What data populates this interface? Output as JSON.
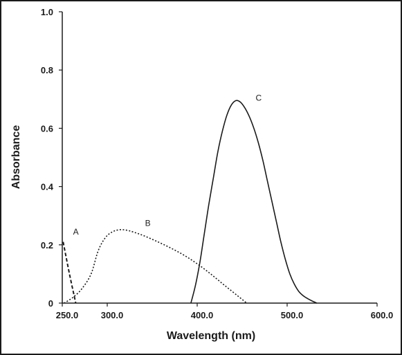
{
  "chart_data": {
    "type": "line",
    "xlabel": "Wavelength (nm)",
    "ylabel": "Absorbance",
    "xlim": [
      250,
      600
    ],
    "ylim": [
      0,
      1.0
    ],
    "x_tick_labels": [
      "250.0",
      "300.0",
      "400.0",
      "500.0",
      "600.0"
    ],
    "x_tick_values": [
      250,
      300,
      400,
      500,
      600
    ],
    "y_tick_labels": [
      "0",
      "0.2",
      "0.4",
      "0.6",
      "0.8",
      "1.0"
    ],
    "y_tick_values": [
      0,
      0.2,
      0.4,
      0.6,
      0.8,
      1.0
    ],
    "grid": false,
    "legend": "none",
    "series": [
      {
        "name": "A",
        "line_style": "dashed",
        "color": "#1a1a1a",
        "x": [
          251,
          258,
          265
        ],
        "y": [
          0.21,
          0.1,
          0.0
        ]
      },
      {
        "name": "B",
        "line_style": "dotted",
        "color": "#1a1a1a",
        "x": [
          252,
          262,
          272,
          282,
          290,
          298,
          306,
          314,
          322,
          330,
          340,
          355,
          370,
          385,
          400,
          415,
          430,
          445,
          455
        ],
        "y": [
          0.0,
          0.02,
          0.05,
          0.1,
          0.18,
          0.225,
          0.245,
          0.252,
          0.25,
          0.243,
          0.232,
          0.212,
          0.19,
          0.165,
          0.135,
          0.1,
          0.062,
          0.025,
          0.0
        ]
      },
      {
        "name": "C",
        "line_style": "solid",
        "color": "#1a1a1a",
        "x": [
          393,
          398,
          403,
          408,
          413,
          418,
          423,
          428,
          433,
          438,
          443,
          448,
          453,
          458,
          463,
          468,
          473,
          478,
          483,
          488,
          493,
          498,
          503,
          508,
          513,
          518,
          523,
          528,
          533
        ],
        "y": [
          0.0,
          0.06,
          0.14,
          0.24,
          0.34,
          0.43,
          0.52,
          0.59,
          0.645,
          0.68,
          0.695,
          0.69,
          0.67,
          0.64,
          0.6,
          0.55,
          0.49,
          0.42,
          0.35,
          0.28,
          0.21,
          0.15,
          0.1,
          0.065,
          0.04,
          0.025,
          0.015,
          0.007,
          0.0
        ]
      }
    ],
    "annotations": [
      {
        "text": "A",
        "x": 262,
        "y": 0.235
      },
      {
        "text": "B",
        "x": 342,
        "y": 0.265
      },
      {
        "text": "C",
        "x": 465,
        "y": 0.695
      }
    ]
  }
}
